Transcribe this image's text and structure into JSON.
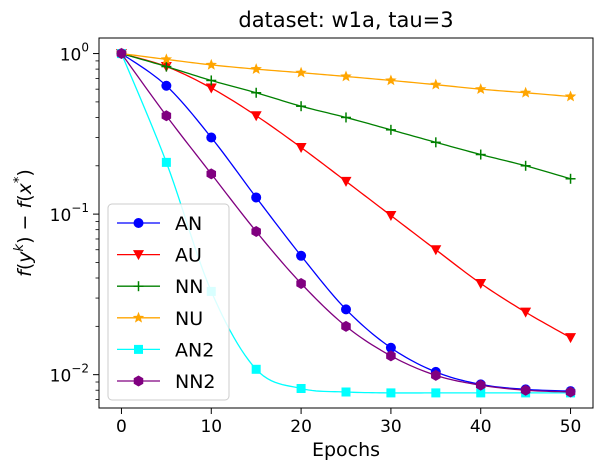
{
  "chart_data": {
    "type": "line",
    "title": "dataset: w1a, tau=3",
    "xlabel": "Epochs",
    "ylabel": "f(y^k) − f(x^*)",
    "yscale": "log",
    "xlim": [
      -2.5,
      52.5
    ],
    "ylim": [
      0.0062,
      1.25
    ],
    "xticks": [
      0,
      10,
      20,
      30,
      40,
      50
    ],
    "xtick_labels": [
      "0",
      "10",
      "20",
      "30",
      "40",
      "50"
    ],
    "yticks": [
      0.01,
      0.1,
      1
    ],
    "ytick_labels": [
      {
        "base": "10",
        "exp": "−2"
      },
      {
        "base": "10",
        "exp": "−1"
      },
      {
        "base": "10",
        "exp": "0"
      }
    ],
    "legend_position": "lower-left",
    "x": [
      0,
      5,
      10,
      15,
      20,
      25,
      30,
      35,
      40,
      45,
      50
    ],
    "series": [
      {
        "name": "AN",
        "color": "#0000ff",
        "marker": "circle",
        "values": [
          1.0,
          0.63,
          0.3,
          0.127,
          0.055,
          0.0255,
          0.0147,
          0.0104,
          0.0087,
          0.0081,
          0.0079
        ]
      },
      {
        "name": "AU",
        "color": "#ff0000",
        "marker": "triangle-down",
        "values": [
          1.0,
          0.83,
          0.61,
          0.41,
          0.26,
          0.16,
          0.098,
          0.06,
          0.037,
          0.0245,
          0.017
        ]
      },
      {
        "name": "NN",
        "color": "#008000",
        "marker": "plus",
        "values": [
          1.0,
          0.83,
          0.68,
          0.57,
          0.47,
          0.4,
          0.335,
          0.28,
          0.235,
          0.2,
          0.166
        ]
      },
      {
        "name": "NU",
        "color": "#ffa500",
        "marker": "star",
        "values": [
          1.0,
          0.92,
          0.85,
          0.8,
          0.76,
          0.72,
          0.68,
          0.64,
          0.6,
          0.57,
          0.54
        ]
      },
      {
        "name": "AN2",
        "color": "#00ffff",
        "marker": "square",
        "values": [
          1.0,
          0.21,
          0.033,
          0.0108,
          0.0082,
          0.0078,
          0.0077,
          0.0077,
          0.0077,
          0.0077,
          0.0077
        ]
      },
      {
        "name": "NN2",
        "color": "#800080",
        "marker": "hexagon",
        "values": [
          1.0,
          0.41,
          0.178,
          0.078,
          0.037,
          0.02,
          0.0131,
          0.0099,
          0.0086,
          0.008,
          0.0078
        ]
      }
    ]
  }
}
